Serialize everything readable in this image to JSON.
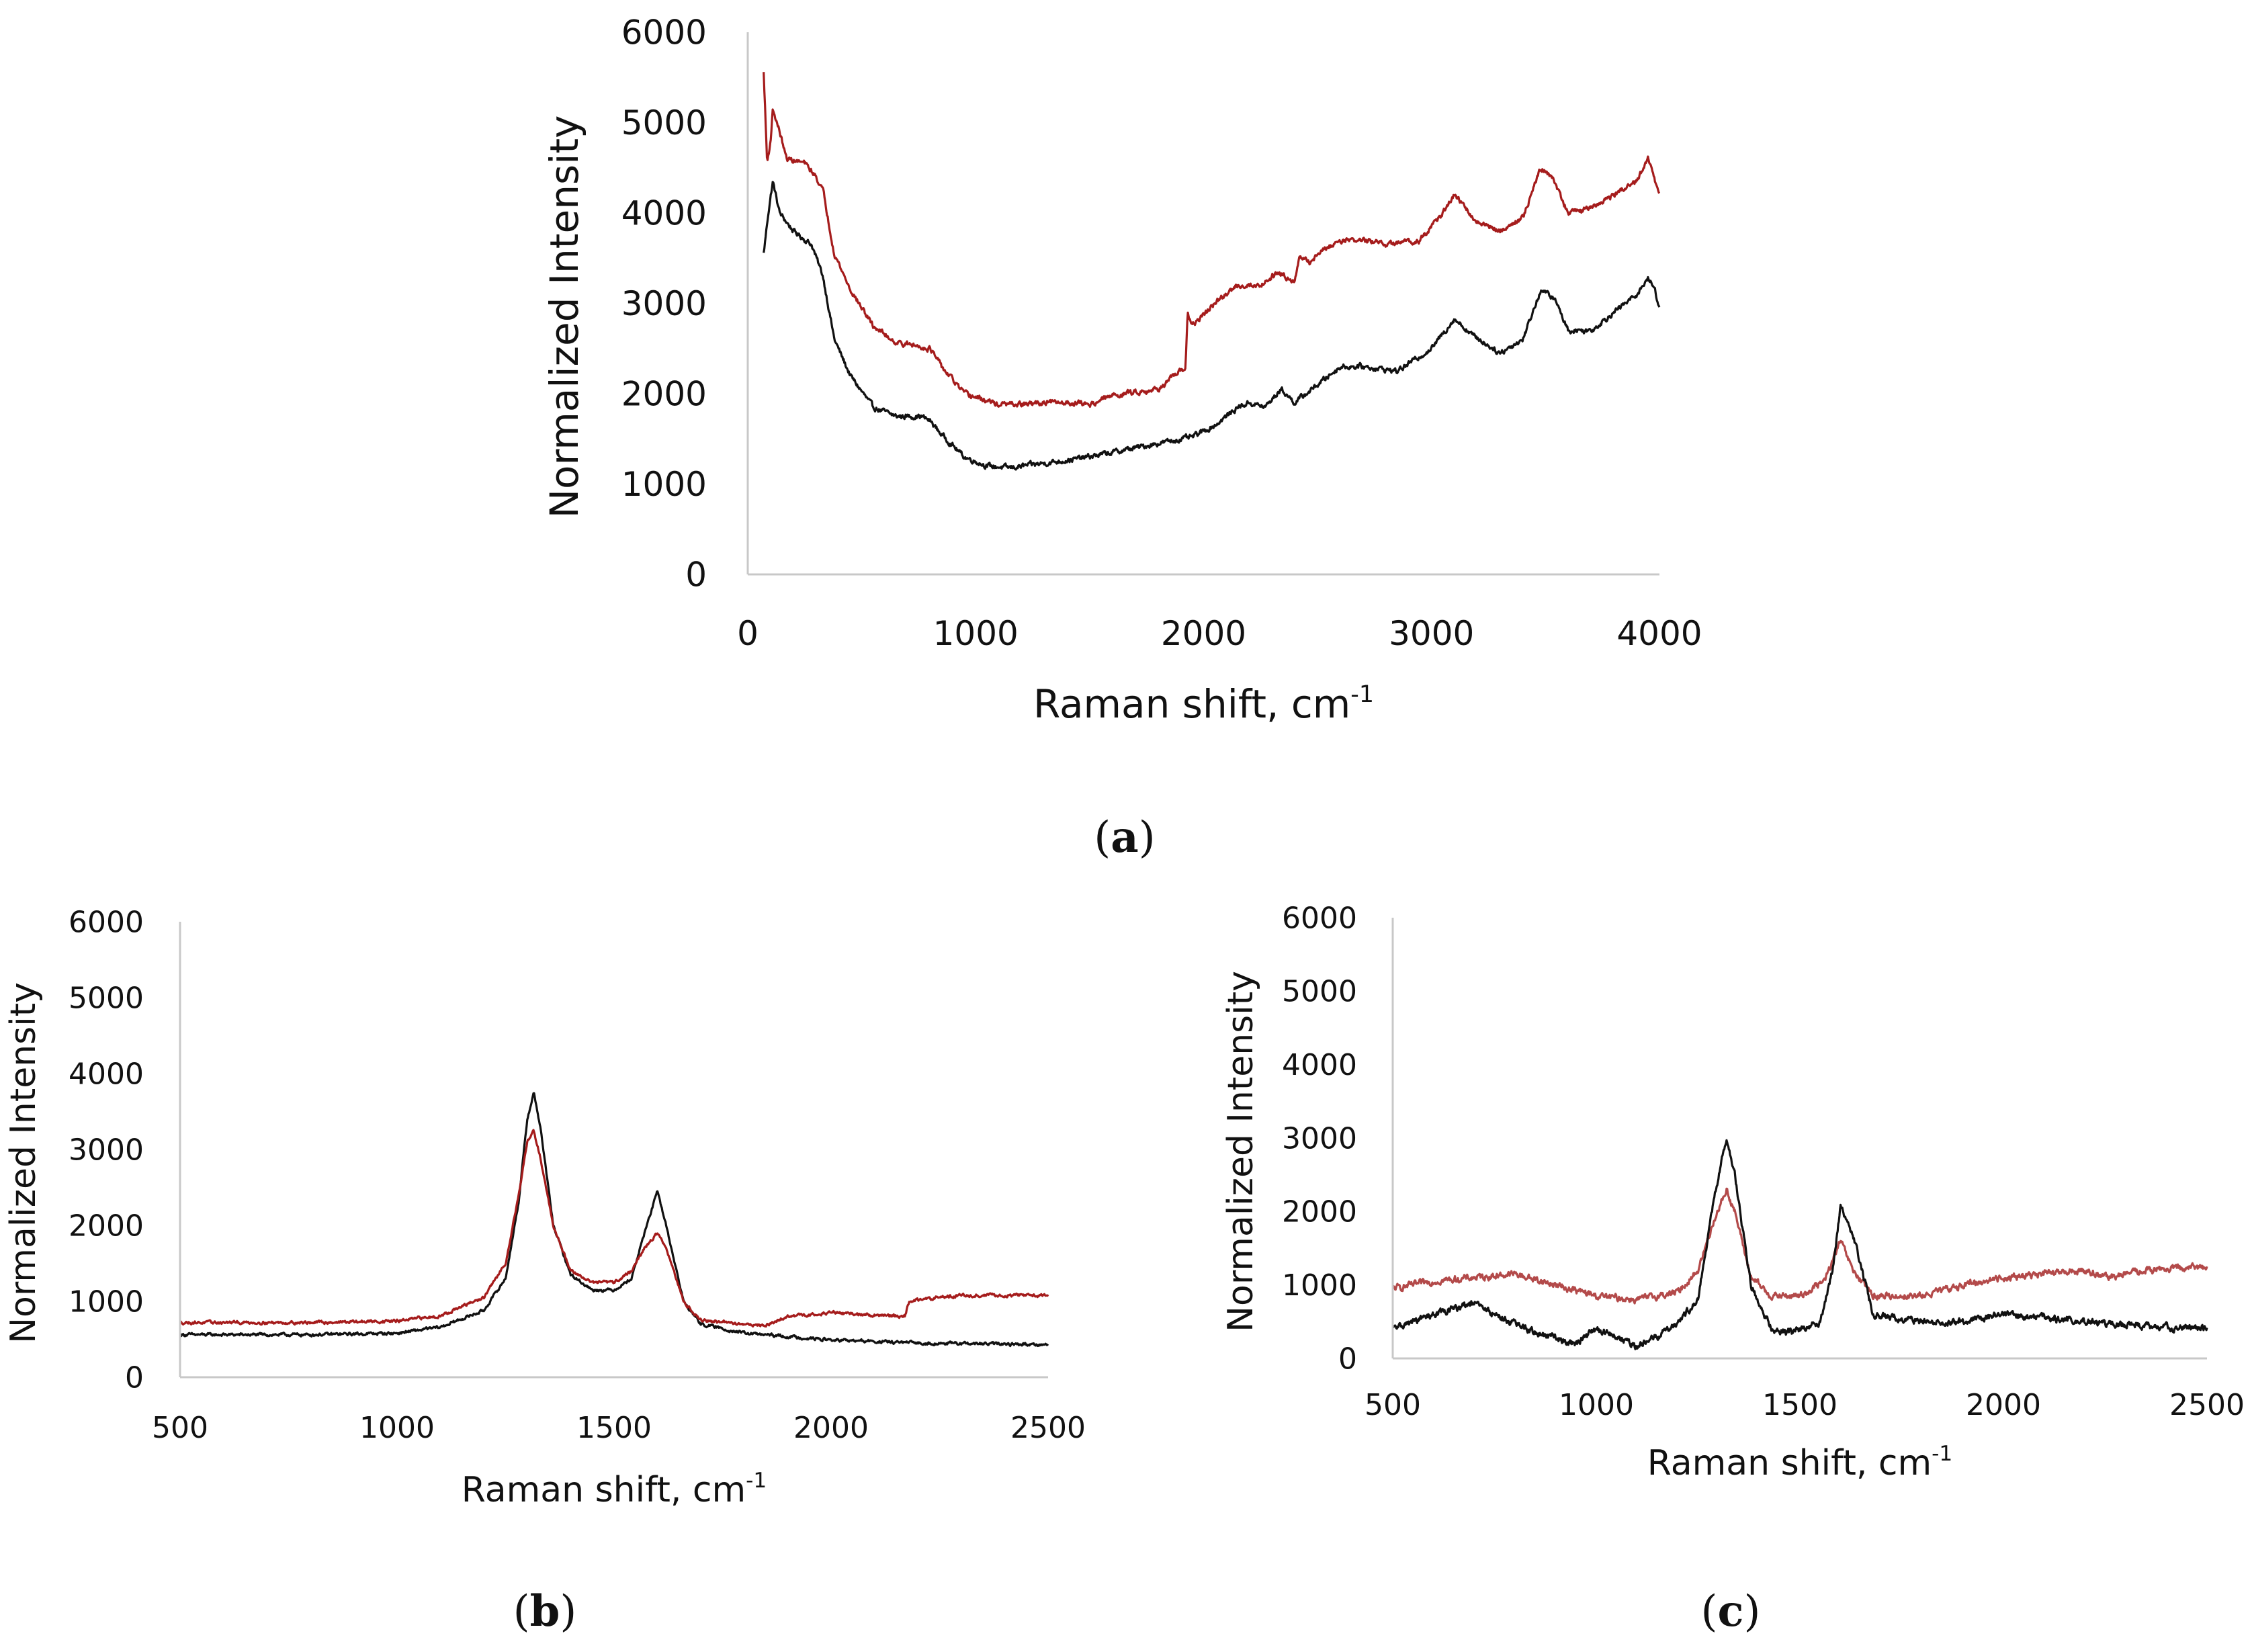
{
  "figure": {
    "colors": {
      "black": "#111111",
      "red": "#A51C1C",
      "red_light": "#B34A4A",
      "axis": "#C8C8C8"
    }
  },
  "chart_data": [
    {
      "id": "a",
      "type": "line",
      "panel_label": "(a)",
      "panel_letter": "a",
      "xlabel": "Raman shift, cm",
      "xlabel_sup": "-1",
      "ylabel": "Normalized Intensity",
      "xlim": [
        0,
        4000
      ],
      "ylim": [
        0,
        6000
      ],
      "xticks": [
        0,
        1000,
        2000,
        3000,
        4000
      ],
      "yticks": [
        0,
        1000,
        2000,
        3000,
        4000,
        5000,
        6000
      ],
      "noise": 45,
      "series": [
        {
          "name": "black",
          "color": "#111111",
          "points": [
            [
              70,
              3550
            ],
            [
              90,
              4000
            ],
            [
              110,
              4350
            ],
            [
              140,
              4000
            ],
            [
              200,
              3800
            ],
            [
              280,
              3650
            ],
            [
              330,
              3300
            ],
            [
              380,
              2600
            ],
            [
              450,
              2200
            ],
            [
              550,
              1850
            ],
            [
              650,
              1750
            ],
            [
              760,
              1750
            ],
            [
              800,
              1700
            ],
            [
              850,
              1550
            ],
            [
              950,
              1300
            ],
            [
              1050,
              1200
            ],
            [
              1150,
              1180
            ],
            [
              1300,
              1230
            ],
            [
              1450,
              1280
            ],
            [
              1600,
              1350
            ],
            [
              1700,
              1400
            ],
            [
              1800,
              1450
            ],
            [
              1950,
              1520
            ],
            [
              2050,
              1650
            ],
            [
              2150,
              1850
            ],
            [
              2200,
              1900
            ],
            [
              2270,
              1850
            ],
            [
              2340,
              2050
            ],
            [
              2400,
              1900
            ],
            [
              2500,
              2100
            ],
            [
              2600,
              2300
            ],
            [
              2700,
              2300
            ],
            [
              2850,
              2250
            ],
            [
              3000,
              2500
            ],
            [
              3100,
              2830
            ],
            [
              3180,
              2650
            ],
            [
              3300,
              2450
            ],
            [
              3400,
              2600
            ],
            [
              3480,
              3150
            ],
            [
              3540,
              3050
            ],
            [
              3600,
              2700
            ],
            [
              3700,
              2700
            ],
            [
              3800,
              2900
            ],
            [
              3900,
              3100
            ],
            [
              3950,
              3280
            ],
            [
              3980,
              3150
            ],
            [
              4000,
              2950
            ]
          ]
        },
        {
          "name": "red",
          "color": "#A51C1C",
          "points": [
            [
              70,
              5550
            ],
            [
              85,
              4550
            ],
            [
              100,
              4800
            ],
            [
              110,
              5150
            ],
            [
              140,
              4900
            ],
            [
              170,
              4600
            ],
            [
              250,
              4550
            ],
            [
              300,
              4400
            ],
            [
              330,
              4250
            ],
            [
              380,
              3550
            ],
            [
              450,
              3150
            ],
            [
              550,
              2750
            ],
            [
              650,
              2570
            ],
            [
              800,
              2500
            ],
            [
              850,
              2300
            ],
            [
              950,
              2000
            ],
            [
              1050,
              1920
            ],
            [
              1100,
              1880
            ],
            [
              1200,
              1880
            ],
            [
              1300,
              1900
            ],
            [
              1450,
              1900
            ],
            [
              1500,
              1880
            ],
            [
              1600,
              1980
            ],
            [
              1700,
              2020
            ],
            [
              1800,
              2050
            ],
            [
              1900,
              2250
            ],
            [
              1920,
              2280
            ],
            [
              1930,
              2900
            ],
            [
              1950,
              2750
            ],
            [
              2050,
              3000
            ],
            [
              2150,
              3200
            ],
            [
              2250,
              3200
            ],
            [
              2300,
              3300
            ],
            [
              2330,
              3350
            ],
            [
              2360,
              3300
            ],
            [
              2400,
              3250
            ],
            [
              2420,
              3500
            ],
            [
              2470,
              3450
            ],
            [
              2500,
              3550
            ],
            [
              2600,
              3700
            ],
            [
              2700,
              3700
            ],
            [
              2800,
              3650
            ],
            [
              2950,
              3700
            ],
            [
              3050,
              4000
            ],
            [
              3100,
              4200
            ],
            [
              3200,
              3900
            ],
            [
              3300,
              3800
            ],
            [
              3400,
              3950
            ],
            [
              3480,
              4500
            ],
            [
              3530,
              4400
            ],
            [
              3600,
              4000
            ],
            [
              3700,
              4050
            ],
            [
              3800,
              4200
            ],
            [
              3900,
              4350
            ],
            [
              3950,
              4600
            ],
            [
              4000,
              4200
            ]
          ]
        }
      ]
    },
    {
      "id": "b",
      "type": "line",
      "panel_label": "(b)",
      "panel_letter": "b",
      "xlabel": "Raman shift, cm",
      "xlabel_sup": "-1",
      "ylabel": "Normalized Intensity",
      "xlim": [
        500,
        2500
      ],
      "ylim": [
        0,
        6000
      ],
      "xticks": [
        500,
        1000,
        1500,
        2000,
        2500
      ],
      "yticks": [
        0,
        1000,
        2000,
        3000,
        4000,
        5000,
        6000
      ],
      "noise": 30,
      "series": [
        {
          "name": "black",
          "color": "#111111",
          "points": [
            [
              500,
              560
            ],
            [
              800,
              560
            ],
            [
              1000,
              580
            ],
            [
              1100,
              660
            ],
            [
              1200,
              880
            ],
            [
              1250,
              1300
            ],
            [
              1280,
              2300
            ],
            [
              1300,
              3400
            ],
            [
              1315,
              3750
            ],
            [
              1330,
              3300
            ],
            [
              1360,
              2000
            ],
            [
              1400,
              1350
            ],
            [
              1450,
              1150
            ],
            [
              1500,
              1150
            ],
            [
              1540,
              1300
            ],
            [
              1570,
              1900
            ],
            [
              1600,
              2450
            ],
            [
              1620,
              2000
            ],
            [
              1660,
              1000
            ],
            [
              1700,
              700
            ],
            [
              1800,
              580
            ],
            [
              2000,
              490
            ],
            [
              2200,
              450
            ],
            [
              2500,
              430
            ]
          ]
        },
        {
          "name": "red",
          "color": "#A51C1C",
          "points": [
            [
              500,
              720
            ],
            [
              800,
              720
            ],
            [
              1000,
              740
            ],
            [
              1100,
              810
            ],
            [
              1200,
              1050
            ],
            [
              1250,
              1500
            ],
            [
              1280,
              2400
            ],
            [
              1300,
              3100
            ],
            [
              1315,
              3250
            ],
            [
              1330,
              2900
            ],
            [
              1360,
              2000
            ],
            [
              1400,
              1400
            ],
            [
              1450,
              1250
            ],
            [
              1500,
              1250
            ],
            [
              1540,
              1400
            ],
            [
              1570,
              1700
            ],
            [
              1600,
              1900
            ],
            [
              1620,
              1700
            ],
            [
              1660,
              1000
            ],
            [
              1700,
              750
            ],
            [
              1800,
              700
            ],
            [
              1850,
              680
            ],
            [
              1900,
              800
            ],
            [
              2000,
              850
            ],
            [
              2170,
              800
            ],
            [
              2180,
              1000
            ],
            [
              2250,
              1050
            ],
            [
              2300,
              1080
            ],
            [
              2500,
              1080
            ]
          ]
        }
      ]
    },
    {
      "id": "c",
      "type": "line",
      "panel_label": "(c)",
      "panel_letter": "c",
      "xlabel": "Raman shift, cm",
      "xlabel_sup": "-1",
      "ylabel": "Normalized Intensity",
      "xlim": [
        500,
        2500
      ],
      "ylim": [
        0,
        6000
      ],
      "xticks": [
        500,
        1000,
        1500,
        2000,
        2500
      ],
      "yticks": [
        0,
        1000,
        2000,
        3000,
        4000,
        5000,
        6000
      ],
      "noise": 70,
      "series": [
        {
          "name": "red",
          "color": "#B34A4A",
          "points": [
            [
              500,
              950
            ],
            [
              600,
              1050
            ],
            [
              700,
              1100
            ],
            [
              800,
              1150
            ],
            [
              900,
              1000
            ],
            [
              1000,
              850
            ],
            [
              1100,
              800
            ],
            [
              1200,
              900
            ],
            [
              1250,
              1200
            ],
            [
              1290,
              1900
            ],
            [
              1320,
              2300
            ],
            [
              1340,
              2000
            ],
            [
              1380,
              1100
            ],
            [
              1430,
              850
            ],
            [
              1500,
              850
            ],
            [
              1560,
              1050
            ],
            [
              1600,
              1600
            ],
            [
              1630,
              1200
            ],
            [
              1680,
              850
            ],
            [
              1800,
              850
            ],
            [
              1900,
              1000
            ],
            [
              2000,
              1100
            ],
            [
              2100,
              1150
            ],
            [
              2200,
              1200
            ],
            [
              2250,
              1100
            ],
            [
              2350,
              1200
            ],
            [
              2500,
              1250
            ]
          ]
        },
        {
          "name": "black",
          "color": "#111111",
          "points": [
            [
              500,
              400
            ],
            [
              600,
              600
            ],
            [
              700,
              750
            ],
            [
              750,
              600
            ],
            [
              850,
              350
            ],
            [
              950,
              200
            ],
            [
              1000,
              400
            ],
            [
              1050,
              300
            ],
            [
              1100,
              150
            ],
            [
              1150,
              300
            ],
            [
              1200,
              500
            ],
            [
              1250,
              800
            ],
            [
              1290,
              2200
            ],
            [
              1320,
              3000
            ],
            [
              1340,
              2500
            ],
            [
              1380,
              1000
            ],
            [
              1430,
              400
            ],
            [
              1480,
              350
            ],
            [
              1550,
              500
            ],
            [
              1580,
              1200
            ],
            [
              1600,
              2050
            ],
            [
              1630,
              1700
            ],
            [
              1680,
              600
            ],
            [
              1800,
              500
            ],
            [
              1900,
              500
            ],
            [
              2000,
              600
            ],
            [
              2100,
              550
            ],
            [
              2200,
              500
            ],
            [
              2300,
              450
            ],
            [
              2500,
              400
            ]
          ]
        }
      ]
    }
  ]
}
